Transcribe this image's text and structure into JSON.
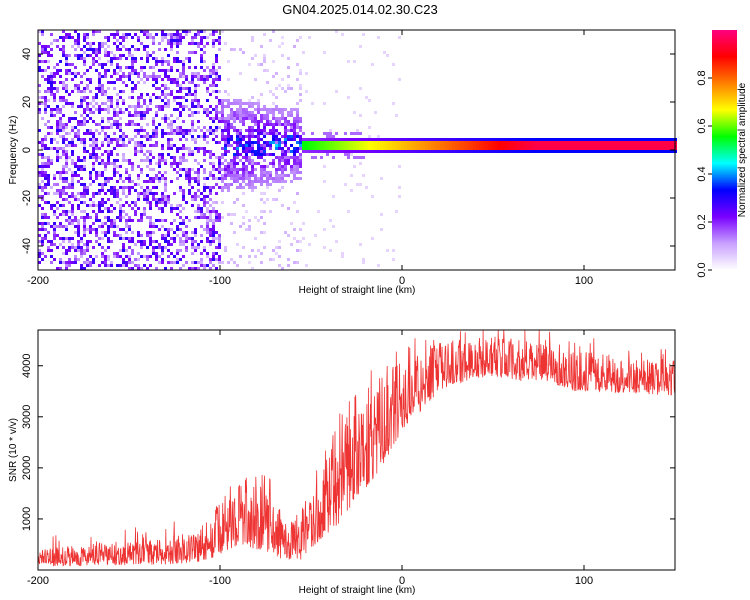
{
  "title": "GN04.2025.014.02.30.C23",
  "chart_data": [
    {
      "type": "heatmap",
      "xlabel": "Height of straight line (km)",
      "ylabel": "Frequency (Hz)",
      "xlim": [
        -200,
        150
      ],
      "ylim": [
        -50,
        50
      ],
      "xticks": [
        -200,
        -100,
        0,
        100
      ],
      "yticks": [
        -40,
        -20,
        0,
        20,
        40
      ],
      "colorbar": {
        "label": "Normalized spectral amplitude",
        "range": [
          0,
          1
        ],
        "ticks": [
          "0.0",
          "0.2",
          "0.4",
          "0.6",
          "0.8"
        ],
        "colors": [
          "#ffffff",
          "#c8a0ff",
          "#7a00ff",
          "#0000ff",
          "#00ffff",
          "#00ff00",
          "#ffff00",
          "#ff7f00",
          "#ff0000",
          "#ff0080"
        ]
      },
      "features": {
        "noise_region_km": [
          -200,
          -100
        ],
        "transition_region_km": [
          -100,
          -55
        ],
        "signal_line_start_km": -55,
        "signal_frequency_hz": 2,
        "signal_amplitude_start": 0.55,
        "signal_amplitude_end": 0.95
      }
    },
    {
      "type": "line",
      "xlabel": "Height of straight line (km)",
      "ylabel": "SNR (10 * v/v)",
      "xlim": [
        -200,
        150
      ],
      "ylim": [
        0,
        4700
      ],
      "xticks": [
        -200,
        -100,
        0,
        100
      ],
      "yticks": [
        1000,
        2000,
        3000,
        4000
      ],
      "color": "#ee3333",
      "envelope": {
        "x": [
          -200,
          -160,
          -130,
          -110,
          -100,
          -90,
          -75,
          -65,
          -55,
          -45,
          -35,
          -25,
          -15,
          -5,
          5,
          15,
          25,
          35,
          50,
          65,
          80,
          95,
          110,
          130,
          150
        ],
        "low": [
          80,
          90,
          110,
          150,
          300,
          500,
          350,
          200,
          200,
          600,
          900,
          1400,
          1800,
          2400,
          2900,
          3300,
          3600,
          3700,
          3800,
          3700,
          3700,
          3500,
          3500,
          3450,
          3400
        ],
        "high": [
          400,
          550,
          600,
          900,
          1300,
          1900,
          1600,
          1100,
          900,
          1900,
          2700,
          3600,
          3700,
          4000,
          4200,
          4400,
          4500,
          4550,
          4600,
          4500,
          4400,
          4300,
          4250,
          4150,
          4100
        ]
      }
    }
  ]
}
